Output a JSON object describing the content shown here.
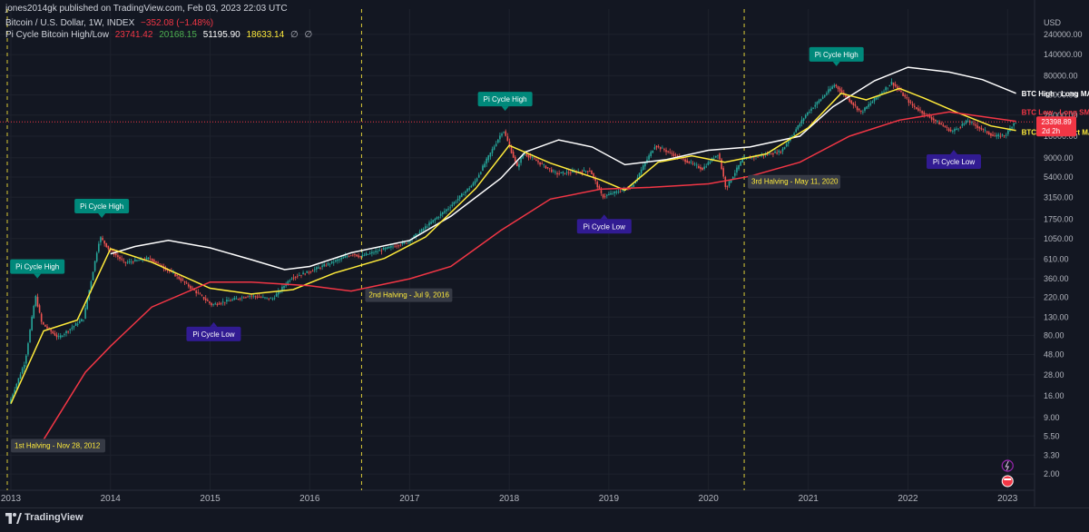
{
  "header": {
    "publisher": "jones2014gk published on TradingView.com, Feb 03, 2023 22:03 UTC",
    "symbol_line": "Bitcoin / U.S. Dollar, 1W, INDEX",
    "change": "−352.08 (−1.48%)",
    "indicator_name": "Pi Cycle Bitcoin High/Low",
    "indicator_values": [
      {
        "text": "23741.42",
        "color": "#f23645"
      },
      {
        "text": "20168.15",
        "color": "#4caf50"
      },
      {
        "text": "51195.90",
        "color": "#ffffff"
      },
      {
        "text": "18633.14",
        "color": "#ffeb3b"
      },
      {
        "text": "∅",
        "color": "#b2b5be"
      },
      {
        "text": "∅",
        "color": "#b2b5be"
      }
    ]
  },
  "footer": {
    "brand": "TradingView",
    "logo_icon": "tradingview-logo-icon"
  },
  "colors": {
    "background": "#131722",
    "grid": "#1e222d",
    "up_candle": "#26a69a",
    "down_candle": "#ef5350",
    "long_ma": "#ffffff",
    "short_ma": "#ffeb3b",
    "low_long_sma": "#f23645",
    "halving_line": "#ffeb3b",
    "pi_high_label": "#00897b",
    "pi_low_label": "#311b92",
    "price_label": "#f23645"
  },
  "chart_data": {
    "type": "line",
    "title": "Bitcoin / U.S. Dollar, 1W, INDEX",
    "y_scale": "log",
    "y_unit": "USD",
    "ylim": [
      1.3,
      470000
    ],
    "xlim": [
      "2013-01-01",
      "2023-03-01"
    ],
    "y_ticks": [
      "240000.00",
      "140000.00",
      "80000.00",
      "48000.00",
      "28000.00",
      "16000.00",
      "9000.00",
      "5400.00",
      "3150.00",
      "1750.00",
      "1050.00",
      "610.00",
      "360.00",
      "220.00",
      "130.00",
      "80.00",
      "48.00",
      "28.00",
      "16.00",
      "9.00",
      "5.50",
      "3.30",
      "2.00"
    ],
    "x_ticks": [
      "2013",
      "2014",
      "2015",
      "2016",
      "2017",
      "2018",
      "2019",
      "2020",
      "2021",
      "2022",
      "2023"
    ],
    "price_series": {
      "name": "Bitcoin / U.S. Dollar",
      "points": [
        [
          "2013-01-01",
          13
        ],
        [
          "2013-03-01",
          40
        ],
        [
          "2013-04-08",
          230
        ],
        [
          "2013-05-01",
          110
        ],
        [
          "2013-07-01",
          75
        ],
        [
          "2013-10-01",
          125
        ],
        [
          "2013-11-30",
          1100
        ],
        [
          "2014-01-01",
          800
        ],
        [
          "2014-03-01",
          550
        ],
        [
          "2014-06-01",
          620
        ],
        [
          "2014-09-01",
          400
        ],
        [
          "2015-01-14",
          180
        ],
        [
          "2015-06-01",
          230
        ],
        [
          "2015-08-24",
          210
        ],
        [
          "2015-11-01",
          370
        ],
        [
          "2016-01-01",
          430
        ],
        [
          "2016-06-15",
          700
        ],
        [
          "2016-07-09",
          650
        ],
        [
          "2017-01-01",
          960
        ],
        [
          "2017-06-01",
          2400
        ],
        [
          "2017-09-01",
          4600
        ],
        [
          "2017-12-17",
          19000
        ],
        [
          "2018-02-06",
          7000
        ],
        [
          "2018-03-01",
          10300
        ],
        [
          "2018-06-29",
          5900
        ],
        [
          "2018-11-01",
          6400
        ],
        [
          "2018-12-15",
          3200
        ],
        [
          "2019-04-01",
          4100
        ],
        [
          "2019-06-26",
          12500
        ],
        [
          "2019-12-17",
          6700
        ],
        [
          "2020-02-13",
          10200
        ],
        [
          "2020-03-12",
          4000
        ],
        [
          "2020-05-11",
          8600
        ],
        [
          "2020-10-01",
          10700
        ],
        [
          "2021-01-01",
          29000
        ],
        [
          "2021-04-14",
          63000
        ],
        [
          "2021-07-20",
          30000
        ],
        [
          "2021-11-10",
          67000
        ],
        [
          "2022-01-24",
          36000
        ],
        [
          "2022-06-18",
          18000
        ],
        [
          "2022-08-15",
          24000
        ],
        [
          "2022-11-21",
          15800
        ],
        [
          "2023-01-01",
          16600
        ],
        [
          "2023-02-03",
          23398.89
        ]
      ]
    },
    "series": [
      {
        "name": "BTC High - Long MA",
        "color": "#ffffff",
        "points": [
          [
            "2014-01-01",
            700
          ],
          [
            "2014-04-01",
            850
          ],
          [
            "2014-08-01",
            1000
          ],
          [
            "2015-01-01",
            820
          ],
          [
            "2015-06-01",
            600
          ],
          [
            "2015-10-01",
            460
          ],
          [
            "2016-01-01",
            500
          ],
          [
            "2016-06-01",
            720
          ],
          [
            "2017-01-01",
            1000
          ],
          [
            "2017-06-01",
            1900
          ],
          [
            "2017-12-01",
            5200
          ],
          [
            "2018-03-01",
            10500
          ],
          [
            "2018-07-01",
            14500
          ],
          [
            "2018-11-01",
            12000
          ],
          [
            "2019-03-01",
            7500
          ],
          [
            "2019-08-01",
            8600
          ],
          [
            "2020-01-01",
            11000
          ],
          [
            "2020-06-01",
            12000
          ],
          [
            "2020-12-01",
            16000
          ],
          [
            "2021-04-01",
            35000
          ],
          [
            "2021-09-01",
            70000
          ],
          [
            "2022-01-01",
            100000
          ],
          [
            "2022-06-01",
            88000
          ],
          [
            "2022-10-01",
            72000
          ],
          [
            "2023-02-01",
            50000
          ]
        ]
      },
      {
        "name": "BTC High - Short MA",
        "color": "#ffeb3b",
        "points": [
          [
            "2013-01-01",
            13
          ],
          [
            "2013-05-01",
            90
          ],
          [
            "2013-09-01",
            120
          ],
          [
            "2014-01-01",
            800
          ],
          [
            "2014-06-01",
            560
          ],
          [
            "2015-01-01",
            280
          ],
          [
            "2015-06-01",
            240
          ],
          [
            "2015-11-01",
            270
          ],
          [
            "2016-04-01",
            420
          ],
          [
            "2016-10-01",
            620
          ],
          [
            "2017-03-01",
            1100
          ],
          [
            "2017-09-01",
            4000
          ],
          [
            "2018-01-01",
            12500
          ],
          [
            "2018-06-01",
            7800
          ],
          [
            "2018-12-01",
            5000
          ],
          [
            "2019-03-01",
            3800
          ],
          [
            "2019-07-01",
            8000
          ],
          [
            "2019-11-01",
            9500
          ],
          [
            "2020-03-01",
            8000
          ],
          [
            "2020-08-01",
            10000
          ],
          [
            "2021-01-01",
            20000
          ],
          [
            "2021-05-01",
            50000
          ],
          [
            "2021-08-01",
            42000
          ],
          [
            "2021-12-01",
            57000
          ],
          [
            "2022-03-01",
            44000
          ],
          [
            "2022-07-01",
            30000
          ],
          [
            "2022-11-01",
            21000
          ],
          [
            "2023-02-01",
            18633.14
          ]
        ]
      },
      {
        "name": "BTC Low - Long SMA",
        "color": "#f23645",
        "points": [
          [
            "2013-05-01",
            5
          ],
          [
            "2013-10-01",
            30
          ],
          [
            "2014-01-01",
            60
          ],
          [
            "2014-06-01",
            170
          ],
          [
            "2015-01-01",
            330
          ],
          [
            "2015-06-01",
            330
          ],
          [
            "2016-01-01",
            300
          ],
          [
            "2016-06-01",
            260
          ],
          [
            "2017-01-01",
            360
          ],
          [
            "2017-06-01",
            500
          ],
          [
            "2017-12-01",
            1300
          ],
          [
            "2018-06-01",
            3000
          ],
          [
            "2018-12-01",
            3900
          ],
          [
            "2019-06-01",
            4100
          ],
          [
            "2020-01-01",
            4500
          ],
          [
            "2020-06-01",
            5500
          ],
          [
            "2020-12-01",
            8000
          ],
          [
            "2021-06-01",
            16000
          ],
          [
            "2021-12-01",
            24500
          ],
          [
            "2022-06-01",
            30500
          ],
          [
            "2023-02-01",
            23741.42
          ]
        ]
      }
    ],
    "halvings": [
      {
        "date": "2012-11-28",
        "label": "1st Halving - Nov 28, 2012"
      },
      {
        "date": "2016-07-09",
        "label": "2nd Halving - Jul 9, 2016"
      },
      {
        "date": "2020-05-11",
        "label": "3rd Halving - May 11, 2020"
      }
    ],
    "annotations": [
      {
        "label": "Pi Cycle High",
        "kind": "high",
        "date": "2013-04-08",
        "price": 230
      },
      {
        "label": "Pi Cycle High",
        "kind": "high",
        "date": "2013-11-30",
        "price": 1150
      },
      {
        "label": "Pi Cycle Low",
        "kind": "low",
        "date": "2015-01-14",
        "price": 180
      },
      {
        "label": "Pi Cycle High",
        "kind": "high",
        "date": "2017-12-17",
        "price": 19800
      },
      {
        "label": "Pi Cycle Low",
        "kind": "low",
        "date": "2018-12-15",
        "price": 3150
      },
      {
        "label": "Pi Cycle High",
        "kind": "high",
        "date": "2021-04-14",
        "price": 65000
      },
      {
        "label": "Pi Cycle Low",
        "kind": "low",
        "date": "2022-06-18",
        "price": 17600
      }
    ],
    "legend_labels": [
      {
        "series": "BTC High - Long MA",
        "text": "BTC High - Long MA"
      },
      {
        "series": "BTC Low - Long SMA",
        "text": "BTC Low - Long SMA"
      },
      {
        "series": "BTC High - Short MA",
        "text": "BTC High - Short MA"
      }
    ],
    "last_price": {
      "value": 23398.89,
      "label": "23398.89",
      "countdown": "2d 2h"
    },
    "axis_unit_label": "USD"
  }
}
